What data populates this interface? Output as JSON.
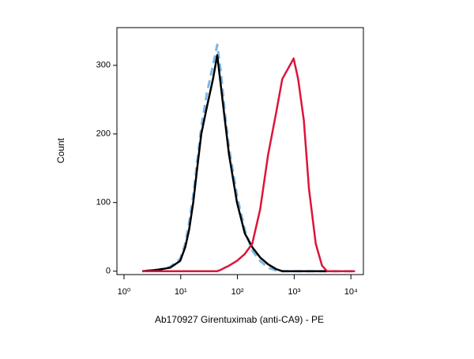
{
  "chart_data": {
    "type": "line",
    "xlabel": "Ab170927 Girentuximab (anti-CA9) - PE",
    "ylabel": "Count",
    "xscale": "log",
    "x": [
      2.1,
      4.0,
      6.5,
      9.8,
      12,
      14,
      16.6,
      19.5,
      23,
      29,
      37,
      44,
      51,
      60,
      71,
      98,
      135,
      182,
      251,
      347,
      479,
      617,
      776,
      977,
      1175,
      1479,
      1820,
      2399,
      3090,
      3802,
      6166,
      11749
    ],
    "series": [
      {
        "color": "#7fb6e6",
        "dash": true,
        "values": [
          0,
          2,
          6,
          18,
          40,
          70,
          110,
          160,
          210,
          260,
          300,
          330,
          290,
          230,
          180,
          110,
          60,
          30,
          15,
          5,
          1,
          0,
          0,
          0,
          0,
          0,
          0,
          0,
          0,
          0,
          0,
          0
        ]
      },
      {
        "color": "#000000",
        "dash": false,
        "values": [
          0,
          2,
          5,
          15,
          35,
          60,
          100,
          150,
          200,
          240,
          280,
          315,
          270,
          220,
          170,
          100,
          55,
          35,
          20,
          10,
          3,
          0,
          0,
          0,
          0,
          0,
          0,
          0,
          0,
          0,
          0,
          0
        ]
      },
      {
        "color": "#dc143c",
        "dash": false,
        "values": [
          0,
          0,
          0,
          0,
          0,
          0,
          0,
          0,
          0,
          0,
          0,
          0,
          2,
          5,
          8,
          15,
          25,
          40,
          90,
          170,
          230,
          280,
          295,
          310,
          280,
          220,
          120,
          40,
          8,
          0,
          0,
          0
        ]
      }
    ],
    "xlim": [
      0.75,
      16600
    ],
    "ylim": [
      -5,
      355
    ],
    "xticks": [
      {
        "value": 1,
        "label": "10⁰"
      },
      {
        "value": 10,
        "label": "10¹"
      },
      {
        "value": 100,
        "label": "10²"
      },
      {
        "value": 1000,
        "label": "10³"
      },
      {
        "value": 10000,
        "label": "10⁴"
      }
    ],
    "yticks": [
      0,
      100,
      200,
      300
    ],
    "grid": false
  }
}
